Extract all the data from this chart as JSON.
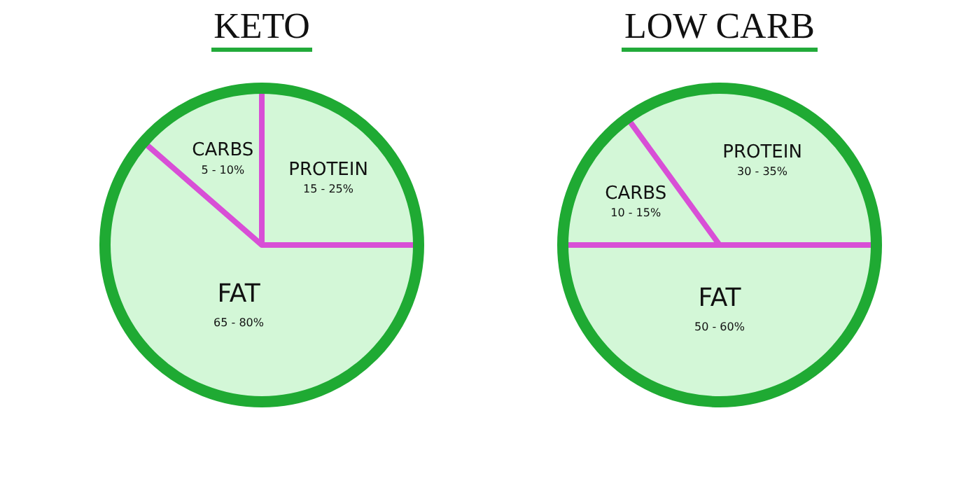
{
  "chart_data": [
    {
      "type": "pie",
      "title": "KETO",
      "categories": [
        "PROTEIN",
        "FAT",
        "CARBS"
      ],
      "values": [
        25,
        61.4,
        13.6
      ],
      "colors": [
        "#d3f7d7",
        "#d3f7d7",
        "#d3f7d7"
      ],
      "annotations": [
        {
          "text": "15 - 25%",
          "x": "PROTEIN"
        },
        {
          "text": "65 - 80%",
          "x": "FAT"
        },
        {
          "text": "5 - 10%",
          "x": "CARBS"
        }
      ]
    },
    {
      "type": "pie",
      "title": "LOW CARB",
      "categories": [
        "CARBS",
        "PROTEIN",
        "FAT"
      ],
      "values": [
        15,
        35,
        50
      ],
      "colors": [
        "#d3f7d7",
        "#d3f7d7",
        "#d3f7d7"
      ],
      "annotations": [
        {
          "text": "10 - 15%",
          "x": "CARBS"
        },
        {
          "text": "30 - 35%",
          "x": "PROTEIN"
        },
        {
          "text": "50 - 60%",
          "x": "FAT"
        }
      ]
    }
  ]
}
